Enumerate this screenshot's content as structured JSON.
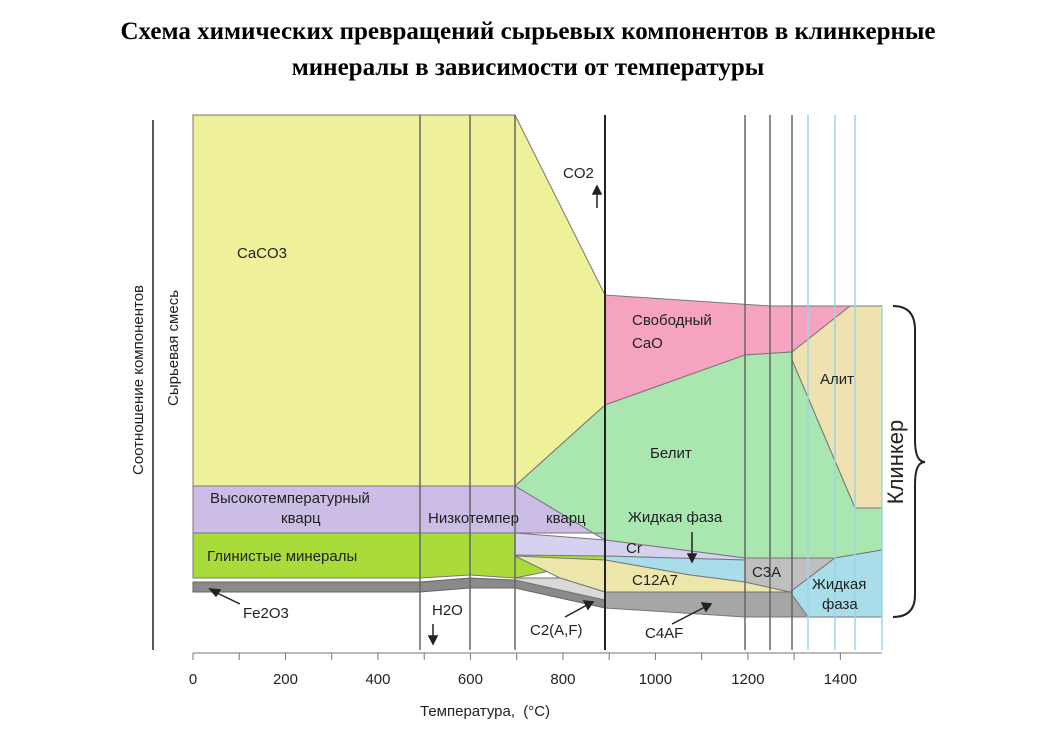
{
  "title": {
    "line1": "Схема химических превращений сырьевых компонентов в клинкерные",
    "line2": "минералы в зависимости от температуры"
  },
  "chart_data": {
    "type": "area",
    "xlabel_main": "Температура,",
    "xlabel_unit": "(°C)",
    "ylabel_outer": "Соотношение  компонентов",
    "ylabel_inner": "Сырьевая смесь",
    "bracket_label": "Клинкер",
    "xlim": [
      0,
      1490
    ],
    "xticks": [
      0,
      200,
      400,
      600,
      800,
      1000,
      1200,
      1400
    ],
    "colors": {
      "caco3": "#eef09a",
      "quartz": "#cbbde6",
      "clay": "#a9dc3b",
      "fe2o3": "#8a8a8a",
      "cao": "#f5a3c0",
      "belite": "#a9e6b0",
      "alite": "#efe1b0",
      "c3a": "#bfbfbf",
      "c4af": "#a6a6a6",
      "c2af": "#ece6aa",
      "cr": "#d6d1ef",
      "liquid": "#a9dde9"
    },
    "regions": [
      {
        "key": "caco3",
        "polygon": [
          [
            0,
            100
          ],
          [
            690,
            100
          ],
          [
            880,
            55
          ],
          [
            880,
            50
          ],
          [
            700,
            20
          ],
          [
            0,
            20
          ]
        ]
      },
      {
        "key": "quartz",
        "polygon": [
          [
            0,
            20
          ],
          [
            700,
            20
          ],
          [
            880,
            8
          ],
          [
            880,
            4
          ],
          [
            700,
            12
          ],
          [
            0,
            12
          ]
        ]
      },
      {
        "key": "clay",
        "polygon": [
          [
            0,
            12
          ],
          [
            700,
            12
          ],
          [
            880,
            4
          ],
          [
            880,
            2
          ],
          [
            700,
            4.5
          ],
          [
            600,
            3
          ],
          [
            500,
            2.5
          ],
          [
            0,
            2.5
          ]
        ]
      },
      {
        "key": "fe2o3",
        "polygon": [
          [
            0,
            2.5
          ],
          [
            500,
            2.5
          ],
          [
            600,
            3
          ],
          [
            700,
            4.5
          ],
          [
            880,
            -1
          ],
          [
            880,
            -1.5
          ],
          [
            700,
            3.5
          ],
          [
            600,
            1.5
          ],
          [
            500,
            1
          ],
          [
            0,
            1
          ]
        ]
      }
    ],
    "series": [
      {
        "name": "CaCO3",
        "label": "CaCO3",
        "x": 160,
        "y": 82
      },
      {
        "name": "Высокотемпературный кварц",
        "label": "Высокотемпературный",
        "label2": "кварц",
        "x": 195,
        "y": 17
      },
      {
        "name": "Низкотемпер. кварц",
        "label": "Низкотемпер",
        "label2": "кварц",
        "x": 700,
        "y": 15
      },
      {
        "name": "Глинистые минералы",
        "label": "Глинистые минералы",
        "x": 200,
        "y": 8
      },
      {
        "name": "Fe2O3",
        "label": "Fe2O3",
        "x": 170,
        "y": -2
      },
      {
        "name": "H2O",
        "label": "H2O",
        "x": 560,
        "y": -2
      },
      {
        "name": "CO2",
        "label": "CO2",
        "x": 860,
        "y": 95
      },
      {
        "name": "Свободный CaO",
        "label": "Свободный",
        "label2": "CaO",
        "x": 1020,
        "y": 46
      },
      {
        "name": "Алит",
        "label": "Алит",
        "x": 1390,
        "y": 38
      },
      {
        "name": "Белит",
        "label": "Белит",
        "x": 1050,
        "y": 28
      },
      {
        "name": "Жидкая фаза",
        "label": "Жидкая фаза",
        "x": 1050,
        "y": 15
      },
      {
        "name": "Cr",
        "label": "Cr",
        "x": 950,
        "y": 8
      },
      {
        "name": "C12A7",
        "label": "C12A7",
        "x": 980,
        "y": 3
      },
      {
        "name": "C3A",
        "label": "C3A",
        "x": 1240,
        "y": 5
      },
      {
        "name": "Жидкая фаза (2)",
        "label": "Жидкая",
        "label2": "фаза",
        "x": 1400,
        "y": 4
      },
      {
        "name": "C2(A,F)",
        "label": "C2(A,F)",
        "x": 780,
        "y": -6
      },
      {
        "name": "C4AF",
        "label": "C4AF",
        "x": 1000,
        "y": -7
      }
    ]
  }
}
